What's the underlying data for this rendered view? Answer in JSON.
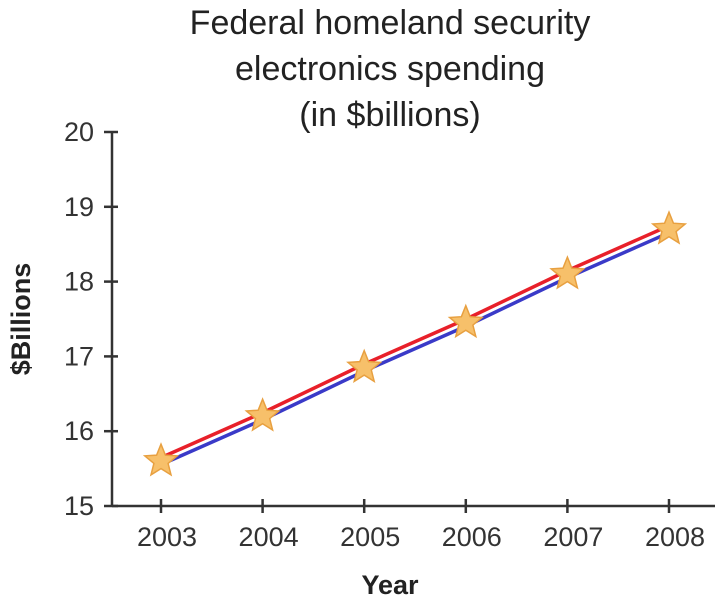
{
  "chart_data": {
    "type": "line",
    "title_lines": [
      "Federal homeland security",
      "electronics spending",
      "(in $billions)"
    ],
    "xlabel": "Year",
    "ylabel": "$Billions",
    "categories": [
      "2003",
      "2004",
      "2005",
      "2006",
      "2007",
      "2008"
    ],
    "series": [
      {
        "values": [
          15.6,
          16.2,
          16.85,
          17.45,
          18.1,
          18.7
        ]
      }
    ],
    "ylim": [
      15,
      20
    ],
    "yticks": [
      "15",
      "16",
      "17",
      "18",
      "19",
      "20"
    ],
    "grid": false,
    "legend": "none",
    "marker": "star",
    "colors": {
      "line_top": "#e8202a",
      "line_bottom": "#3a3ac8",
      "marker_fill": "#f7c06a",
      "marker_stroke": "#e8a040",
      "axis": "#333333"
    }
  }
}
